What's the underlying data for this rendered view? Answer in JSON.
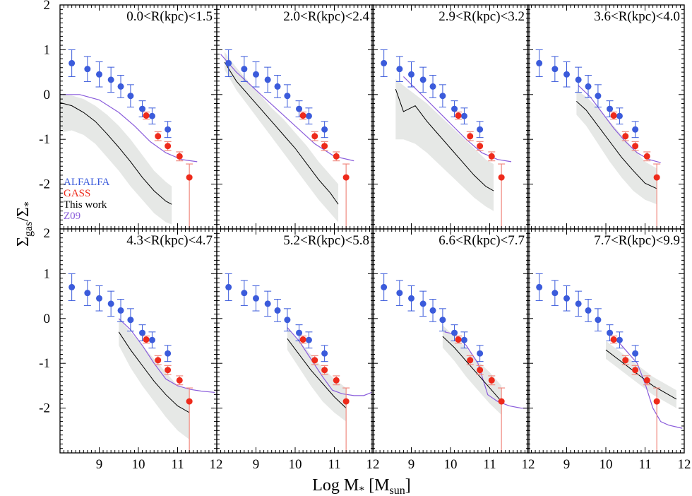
{
  "figure": {
    "xlabel": "Log M",
    "xlabel_sub": "*",
    "xlabel_unit_open": " [M",
    "xlabel_unit_sub": "sun",
    "xlabel_unit_close": "]",
    "ylabel_main": "Σ",
    "ylabel_sub1": "gas",
    "ylabel_mid": "/Σ",
    "ylabel_sub2": "*"
  },
  "legend": [
    {
      "label": "ALFALFA",
      "color": "#3b5bdb"
    },
    {
      "label": "GASS",
      "color": "#ee2a1b"
    },
    {
      "label": "This work",
      "color": "#000000"
    },
    {
      "label": "Z09",
      "color": "#8a5cdb"
    }
  ],
  "chart_data": {
    "type": "scatter",
    "xlim": [
      8.0,
      12.0
    ],
    "ylim": [
      -3.0,
      2.0
    ],
    "xticks": [
      9,
      10,
      11,
      12
    ],
    "yticks": [
      -2,
      -1,
      0,
      1,
      2
    ],
    "colors": {
      "alfalfa": "#3b5bdb",
      "gass": "#ee2a1b",
      "gass_err": "#f08a80",
      "this_work": "#000000",
      "band": "#e6e8e6",
      "z09": "#8a5cdb"
    },
    "alfalfa": {
      "x": [
        8.3,
        8.7,
        9.0,
        9.3,
        9.55,
        9.8,
        10.1,
        10.35,
        10.75
      ],
      "y": [
        0.7,
        0.57,
        0.45,
        0.33,
        0.18,
        -0.03,
        -0.32,
        -0.48,
        -0.78
      ],
      "err": [
        0.3,
        0.28,
        0.28,
        0.28,
        0.25,
        0.25,
        0.18,
        0.18,
        0.18
      ]
    },
    "gass": {
      "x": [
        10.2,
        10.5,
        10.75,
        11.05,
        11.3
      ],
      "y": [
        -0.47,
        -0.93,
        -1.15,
        -1.38,
        -1.85
      ],
      "err_lo": [
        0.08,
        0.1,
        0.1,
        0.1,
        1.15
      ],
      "err_hi": [
        0.08,
        0.1,
        0.1,
        0.1,
        0.3
      ]
    },
    "panels": [
      {
        "label": "0.0<R(kpc)<1.5",
        "this_work": {
          "x": [
            8.0,
            8.3,
            8.6,
            8.9,
            9.2,
            9.5,
            9.8,
            10.1,
            10.4,
            10.7,
            10.85
          ],
          "y": [
            -0.18,
            -0.25,
            -0.4,
            -0.6,
            -0.88,
            -1.18,
            -1.5,
            -1.85,
            -2.15,
            -2.38,
            -2.45
          ]
        },
        "band": {
          "x": [
            8.0,
            8.3,
            8.6,
            8.9,
            9.2,
            9.5,
            9.8,
            10.1,
            10.4,
            10.7,
            10.85
          ],
          "lo": [
            -0.85,
            -0.8,
            -0.9,
            -1.1,
            -1.4,
            -1.7,
            -2.05,
            -2.35,
            -2.65,
            -2.85,
            -2.9
          ],
          "hi": [
            0.0,
            -0.02,
            -0.1,
            -0.25,
            -0.45,
            -0.7,
            -1.0,
            -1.35,
            -1.7,
            -1.95,
            -2.05
          ]
        },
        "z09": {
          "x": [
            8.0,
            8.5,
            9.0,
            9.5,
            9.9,
            10.3,
            10.7,
            11.1,
            11.5
          ],
          "y": [
            0.0,
            0.0,
            -0.12,
            -0.4,
            -0.7,
            -1.05,
            -1.3,
            -1.45,
            -1.5
          ]
        }
      },
      {
        "label": "2.0<R(kpc)<2.4",
        "this_work": {
          "x": [
            8.2,
            8.5,
            8.8,
            9.1,
            9.4,
            9.7,
            10.0,
            10.3,
            10.6,
            10.9,
            11.1
          ],
          "y": [
            0.72,
            0.3,
            0.0,
            -0.3,
            -0.6,
            -0.9,
            -1.2,
            -1.55,
            -1.9,
            -2.2,
            -2.45
          ]
        },
        "band": {
          "x": [
            8.2,
            8.5,
            8.8,
            9.1,
            9.4,
            9.7,
            10.0,
            10.3,
            10.6,
            10.9,
            11.1
          ],
          "lo": [
            0.55,
            0.1,
            -0.25,
            -0.6,
            -0.95,
            -1.3,
            -1.65,
            -2.0,
            -2.35,
            -2.65,
            -2.85
          ],
          "hi": [
            0.95,
            0.6,
            0.3,
            0.0,
            -0.3,
            -0.55,
            -0.85,
            -1.15,
            -1.5,
            -1.8,
            -2.0
          ]
        },
        "z09": {
          "x": [
            8.1,
            8.5,
            9.0,
            9.5,
            10.0,
            10.5,
            11.0,
            11.5
          ],
          "y": [
            0.9,
            0.5,
            0.1,
            -0.3,
            -0.7,
            -1.1,
            -1.38,
            -1.48
          ]
        }
      },
      {
        "label": "2.9<R(kpc)<3.2",
        "this_work": {
          "x": [
            8.6,
            8.8,
            9.1,
            9.4,
            9.7,
            10.0,
            10.3,
            10.6,
            10.9,
            11.1
          ],
          "y": [
            0.12,
            -0.38,
            -0.25,
            -0.6,
            -0.9,
            -1.2,
            -1.5,
            -1.8,
            -2.05,
            -2.15
          ]
        },
        "band": {
          "x": [
            8.6,
            8.8,
            9.1,
            9.4,
            9.7,
            10.0,
            10.3,
            10.6,
            10.9,
            11.1
          ],
          "lo": [
            -1.0,
            -1.0,
            -1.1,
            -1.3,
            -1.55,
            -1.8,
            -2.05,
            -2.3,
            -2.5,
            -2.6
          ],
          "hi": [
            0.35,
            0.2,
            0.0,
            -0.2,
            -0.45,
            -0.7,
            -0.95,
            -1.2,
            -1.45,
            -1.55
          ]
        },
        "z09": {
          "x": [
            8.8,
            9.2,
            9.6,
            10.0,
            10.4,
            10.8,
            11.2,
            11.55
          ],
          "y": [
            0.4,
            0.05,
            -0.3,
            -0.65,
            -1.0,
            -1.3,
            -1.45,
            -1.5
          ]
        }
      },
      {
        "label": "3.6<R(kpc)<4.0",
        "this_work": {
          "x": [
            9.25,
            9.5,
            9.8,
            10.1,
            10.4,
            10.7,
            11.0,
            11.3
          ],
          "y": [
            -0.15,
            -0.35,
            -0.7,
            -1.05,
            -1.4,
            -1.7,
            -1.98,
            -2.1
          ]
        },
        "band": {
          "x": [
            9.25,
            9.5,
            9.8,
            10.1,
            10.4,
            10.7,
            11.0,
            11.3
          ],
          "lo": [
            -0.45,
            -0.7,
            -1.1,
            -1.5,
            -1.85,
            -2.15,
            -2.35,
            -2.45
          ],
          "hi": [
            0.1,
            -0.05,
            -0.3,
            -0.6,
            -0.9,
            -1.2,
            -1.5,
            -1.65
          ]
        },
        "z09": {
          "x": [
            9.3,
            9.6,
            9.9,
            10.2,
            10.5,
            10.8,
            11.1,
            11.4
          ],
          "y": [
            0.2,
            -0.05,
            -0.4,
            -0.75,
            -1.05,
            -1.3,
            -1.45,
            -1.52
          ]
        }
      },
      {
        "label": "4.3<R(kpc)<4.7",
        "this_work": {
          "x": [
            9.5,
            9.8,
            10.1,
            10.4,
            10.7,
            11.0,
            11.3
          ],
          "y": [
            -0.3,
            -0.7,
            -1.05,
            -1.4,
            -1.7,
            -1.95,
            -2.1
          ]
        },
        "band": {
          "x": [
            9.5,
            9.8,
            10.1,
            10.4,
            10.7,
            11.0,
            11.3
          ],
          "lo": [
            -0.6,
            -1.1,
            -1.5,
            -1.85,
            -2.2,
            -2.5,
            -2.7
          ],
          "hi": [
            0.0,
            -0.3,
            -0.6,
            -0.9,
            -1.2,
            -1.5,
            -1.6
          ]
        },
        "z09": {
          "x": [
            9.5,
            9.8,
            10.1,
            10.4,
            10.7,
            11.0,
            11.3,
            11.6,
            11.95
          ],
          "y": [
            0.0,
            -0.25,
            -0.6,
            -1.0,
            -1.35,
            -1.5,
            -1.58,
            -1.62,
            -1.65
          ]
        }
      },
      {
        "label": "5.2<R(kpc)<5.8",
        "this_work": {
          "x": [
            9.8,
            10.1,
            10.4,
            10.7,
            11.0,
            11.3
          ],
          "y": [
            -0.45,
            -0.8,
            -1.15,
            -1.45,
            -1.75,
            -2.0
          ]
        },
        "band": {
          "x": [
            9.8,
            10.1,
            10.4,
            10.7,
            11.0,
            11.3
          ],
          "lo": [
            -0.7,
            -1.1,
            -1.5,
            -1.85,
            -2.1,
            -2.3
          ],
          "hi": [
            -0.2,
            -0.5,
            -0.8,
            -1.1,
            -1.35,
            -1.55
          ]
        },
        "z09": {
          "x": [
            9.8,
            10.1,
            10.4,
            10.7,
            10.95,
            11.2,
            11.5,
            11.75,
            11.95
          ],
          "y": [
            -0.2,
            -0.5,
            -0.9,
            -1.3,
            -1.6,
            -1.68,
            -1.72,
            -1.72,
            -1.65
          ]
        }
      },
      {
        "label": "6.6<R(kpc)<7.7",
        "this_work": {
          "x": [
            9.8,
            10.1,
            10.4,
            10.7,
            11.0,
            11.3
          ],
          "y": [
            -0.4,
            -0.65,
            -0.95,
            -1.25,
            -1.55,
            -1.85
          ]
        },
        "band": {
          "x": [
            9.8,
            10.1,
            10.4,
            10.7,
            11.0,
            11.3
          ],
          "lo": [
            -0.65,
            -0.95,
            -1.3,
            -1.6,
            -1.9,
            -2.15
          ],
          "hi": [
            -0.15,
            -0.4,
            -0.65,
            -0.95,
            -1.2,
            -1.5
          ]
        },
        "z09": {
          "x": [
            9.85,
            10.1,
            10.4,
            10.7,
            10.95,
            11.2,
            11.5,
            11.8,
            11.95
          ],
          "y": [
            -0.3,
            -0.35,
            -0.6,
            -1.0,
            -1.7,
            -1.85,
            -1.95,
            -2.0,
            -2.0
          ]
        }
      },
      {
        "label": "7.7<R(kpc)<9.9",
        "this_work": {
          "x": [
            10.0,
            10.3,
            10.6,
            10.9,
            11.2,
            11.5,
            11.8
          ],
          "y": [
            -0.7,
            -0.9,
            -1.1,
            -1.3,
            -1.5,
            -1.65,
            -1.8
          ]
        },
        "band": {
          "x": [
            10.0,
            10.3,
            10.6,
            10.9,
            11.2,
            11.5,
            11.8
          ],
          "lo": [
            -0.9,
            -1.1,
            -1.3,
            -1.5,
            -1.7,
            -1.85,
            -2.0
          ],
          "hi": [
            -0.5,
            -0.7,
            -0.9,
            -1.1,
            -1.3,
            -1.45,
            -1.6
          ]
        },
        "z09": {
          "x": [
            10.2,
            10.5,
            10.8,
            11.0,
            11.2,
            11.4,
            11.6,
            11.8,
            11.95
          ],
          "y": [
            -0.4,
            -0.7,
            -1.0,
            -1.45,
            -2.0,
            -2.3,
            -2.38,
            -2.42,
            -2.45
          ]
        }
      }
    ]
  }
}
